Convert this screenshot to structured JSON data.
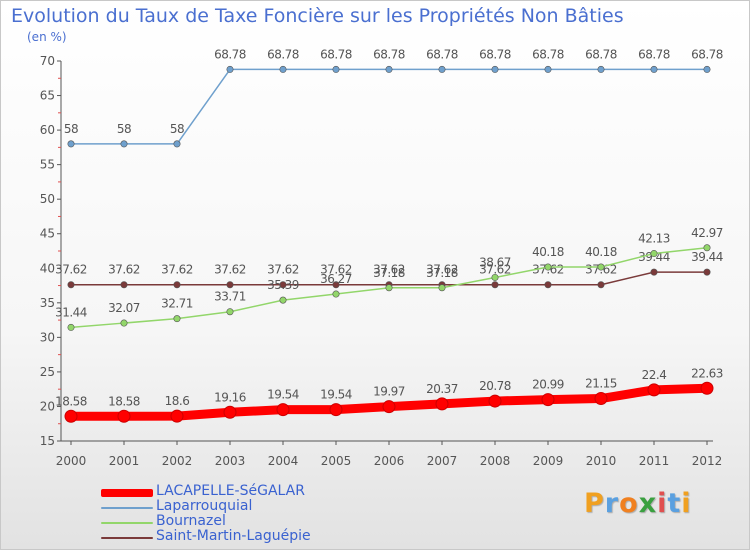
{
  "chart_data": {
    "type": "line",
    "title": "Evolution du Taux de Taxe Foncière sur les Propriétés Non Bâties",
    "ylabel": "(en %)",
    "xlabel": "",
    "ylim": [
      15,
      70
    ],
    "yticks": [
      "15",
      "20",
      "25",
      "30",
      "35",
      "40",
      "45",
      "50",
      "55",
      "60",
      "65",
      "70"
    ],
    "categories": [
      "2000",
      "2001",
      "2002",
      "2003",
      "2004",
      "2005",
      "2006",
      "2007",
      "2008",
      "2009",
      "2010",
      "2011",
      "2012"
    ],
    "grid": false,
    "legend_position": "bottom",
    "series": [
      {
        "name": "Laparrouquial",
        "color": "#6fa0cd",
        "values": [
          58,
          58,
          58,
          68.78,
          68.78,
          68.78,
          68.78,
          68.78,
          68.78,
          68.78,
          68.78,
          68.78,
          68.78
        ],
        "labels": [
          "58",
          "58",
          "58",
          "68.78",
          "68.78",
          "68.78",
          "68.78",
          "68.78",
          "68.78",
          "68.78",
          "68.78",
          "68.78",
          "68.78"
        ]
      },
      {
        "name": "Saint-Martin-Laguépie",
        "color": "#7a3a3a",
        "values": [
          37.62,
          37.62,
          37.62,
          37.62,
          37.62,
          37.62,
          37.62,
          37.62,
          37.62,
          37.62,
          37.62,
          39.44,
          39.44
        ],
        "labels": [
          "37.62",
          "37.62",
          "37.62",
          "37.62",
          "37.62",
          "37.62",
          "37.62",
          "37.62",
          "37.62",
          "37.62",
          "37.62",
          "39.44",
          "39.44"
        ]
      },
      {
        "name": "Bournazel",
        "color": "#92d66a",
        "values": [
          31.44,
          32.07,
          32.71,
          33.71,
          35.39,
          36.27,
          37.18,
          37.18,
          38.67,
          40.18,
          40.18,
          42.13,
          42.97
        ],
        "labels": [
          "31.44",
          "32.07",
          "32.71",
          "33.71",
          "35.39",
          "36.27",
          "37.18",
          "37.18",
          "38.67",
          "40.18",
          "40.18",
          "42.13",
          "42.97"
        ]
      },
      {
        "name": "LACAPELLE-SéGALAR",
        "color": "#ff0000",
        "values": [
          18.58,
          18.58,
          18.6,
          19.16,
          19.54,
          19.54,
          19.97,
          20.37,
          20.78,
          20.99,
          21.15,
          22.4,
          22.63
        ],
        "labels": [
          "18.58",
          "18.58",
          "18.6",
          "19.16",
          "19.54",
          "19.54",
          "19.97",
          "20.37",
          "20.78",
          "20.99",
          "21.15",
          "22.4",
          "22.63"
        ]
      }
    ]
  },
  "legend": [
    {
      "label": "LACAPELLE-SéGALAR",
      "color": "#ff0000"
    },
    {
      "label": "Laparrouquial",
      "color": "#6fa0cd"
    },
    {
      "label": "Bournazel",
      "color": "#92d66a"
    },
    {
      "label": "Saint-Martin-Laguépie",
      "color": "#7a3a3a"
    }
  ],
  "logo": {
    "text": "Proxiti",
    "letters": [
      "P",
      "r",
      "o",
      "x",
      "i",
      "t",
      "i"
    ],
    "colors": [
      "#f0a020",
      "#5aa0e0",
      "#f08020",
      "#3aa040",
      "#e05050",
      "#5aa0e0",
      "#f0a020"
    ]
  }
}
